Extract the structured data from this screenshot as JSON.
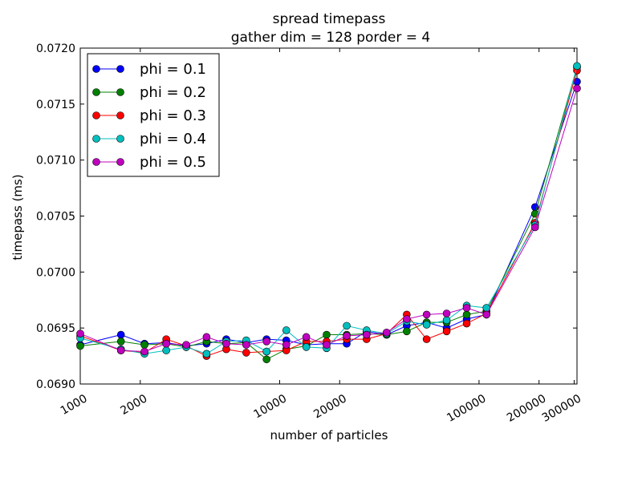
{
  "chart_data": {
    "type": "line",
    "title": "spread timepass",
    "subtitle": "gather dim = 128 porder = 4",
    "xlabel": "number of particles",
    "ylabel": "timepass (ms)",
    "xscale": "log",
    "xlim": [
      1000,
      310000
    ],
    "ylim": [
      0.069,
      0.072
    ],
    "x_ticks": [
      1000,
      2000,
      10000,
      20000,
      100000,
      200000,
      300000
    ],
    "x_tick_labels": [
      "1000",
      "2000",
      "10000",
      "20000",
      "100000",
      "200000",
      "300000"
    ],
    "y_ticks": [
      0.069,
      0.0695,
      0.07,
      0.0705,
      0.071,
      0.0715,
      0.072
    ],
    "y_tick_labels": [
      "0.0690",
      "0.0695",
      "0.0700",
      "0.0705",
      "0.0710",
      "0.0715",
      "0.0720"
    ],
    "grid": false,
    "legend_position": "top-left",
    "x": [
      1000,
      1600,
      2100,
      2700,
      3400,
      4300,
      5400,
      6800,
      8600,
      10800,
      13600,
      17200,
      21700,
      27300,
      34400,
      43400,
      54600,
      68800,
      86700,
      109000,
      191000,
      310000
    ],
    "series": [
      {
        "name": "phi = 0.1",
        "color": "#0000ff",
        "values": [
          0.06935,
          0.06944,
          0.06936,
          0.06937,
          0.06934,
          0.06936,
          0.0694,
          0.06937,
          0.0694,
          0.06939,
          0.06935,
          0.06936,
          0.06936,
          0.06947,
          0.06944,
          0.06952,
          0.06955,
          0.0695,
          0.06958,
          0.06962,
          0.07058,
          0.0717
        ]
      },
      {
        "name": "phi = 0.2",
        "color": "#008000",
        "values": [
          0.06934,
          0.06938,
          0.06935,
          0.06936,
          0.06933,
          0.06938,
          0.06936,
          0.06937,
          0.06922,
          0.06931,
          0.06934,
          0.06944,
          0.06944,
          0.06945,
          0.06944,
          0.06947,
          0.06955,
          0.06955,
          0.06962,
          0.06965,
          0.07052,
          0.07183
        ]
      },
      {
        "name": "phi = 0.3",
        "color": "#ff0000",
        "values": [
          0.06943,
          0.0693,
          0.06928,
          0.0694,
          0.06934,
          0.06925,
          0.06931,
          0.06928,
          0.06929,
          0.0693,
          0.06938,
          0.06938,
          0.0694,
          0.0694,
          0.06945,
          0.06962,
          0.0694,
          0.06947,
          0.06954,
          0.06963,
          0.07044,
          0.0718
        ]
      },
      {
        "name": "phi = 0.4",
        "color": "#00bfbf",
        "values": [
          0.06941,
          0.06931,
          0.06927,
          0.0693,
          0.06933,
          0.06927,
          0.06938,
          0.06939,
          0.06929,
          0.06948,
          0.06933,
          0.06932,
          0.06952,
          0.06948,
          0.06945,
          0.06956,
          0.06953,
          0.06957,
          0.0697,
          0.06968,
          0.07042,
          0.07184
        ]
      },
      {
        "name": "phi = 0.5",
        "color": "#bf00bf",
        "values": [
          0.06945,
          0.0693,
          0.06929,
          0.06936,
          0.06935,
          0.06942,
          0.06936,
          0.06935,
          0.06938,
          0.06935,
          0.06942,
          0.06935,
          0.06943,
          0.06944,
          0.06946,
          0.06958,
          0.06962,
          0.06963,
          0.06968,
          0.06962,
          0.0704,
          0.07164
        ]
      }
    ]
  }
}
